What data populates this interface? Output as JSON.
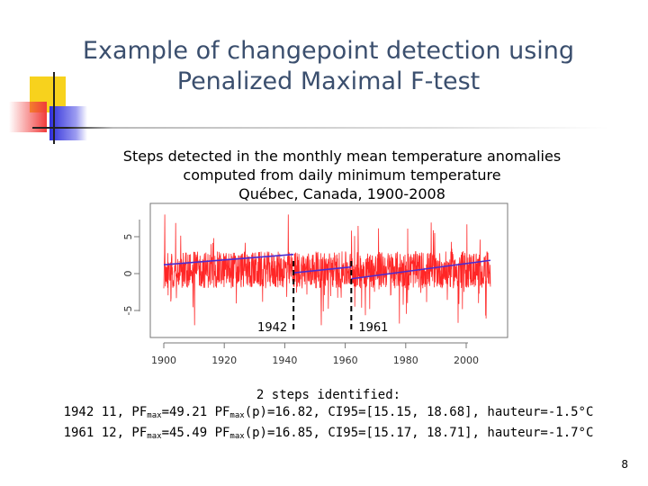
{
  "slide": {
    "title": "Example of changepoint detection using\nPenalized Maximal F-test",
    "caption": "Steps detected in the monthly mean temperature anomalies\ncomputed from daily minimum temperature\nQuébec, Canada, 1900-2008",
    "page_number": "8",
    "summary": {
      "heading": "2 steps identified:",
      "rows": [
        {
          "prefix": "1942 11, PF",
          "max1": "max",
          "mid1": "=49.21 PF",
          "max2": "max",
          "rest": "(p)=16.82, CI95=[15.15, 18.68], hauteur=-1.5°C"
        },
        {
          "prefix": "1961 12, PF",
          "max1": "max",
          "mid1": "=45.49 PF",
          "max2": "max",
          "rest": "(p)=16.85, CI95=[15.17, 18.71], hauteur=-1.7°C"
        }
      ]
    }
  },
  "chart_data": {
    "type": "line",
    "xlim": [
      1900,
      2008
    ],
    "ylim": [
      -7,
      8
    ],
    "xticks": [
      1900,
      1920,
      1940,
      1960,
      1980,
      2000
    ],
    "yticks": [
      -5,
      0,
      5
    ],
    "series": [
      {
        "kind": "monthly-anomalies",
        "color": "#ff0000",
        "x_start": 1900,
        "x_end": 2008,
        "mean_level": 0.5,
        "amplitude": 2.5
      },
      {
        "kind": "step-fit",
        "color": "#4b2bd1",
        "segments": [
          {
            "x": [
              1900,
              1942.9
            ],
            "y": [
              1.2,
              2.6
            ]
          },
          {
            "x": [
              1942.9,
              1962.0
            ],
            "y": [
              0.1,
              0.9
            ]
          },
          {
            "x": [
              1962.0,
              2008
            ],
            "y": [
              -0.7,
              1.8
            ]
          }
        ]
      }
    ],
    "changepoints": [
      {
        "x": 1942.9,
        "label": "1942"
      },
      {
        "x": 1962.0,
        "label": "1961"
      }
    ],
    "line_colors": {
      "anomaly": "#ff0000",
      "fit": "#4b2bd1",
      "marker": "#000000"
    }
  }
}
